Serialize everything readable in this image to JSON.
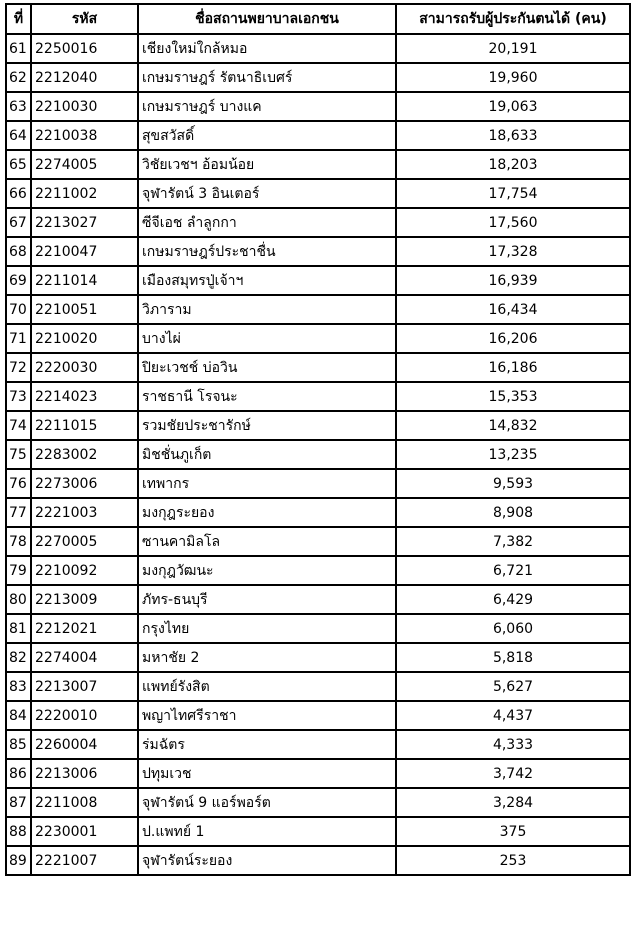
{
  "headers": [
    "ที่",
    "รหัส",
    "ชื่อสถานพยาบาลเอกชน",
    "สามารถรับผู้ประกันตนได้ (คน)"
  ],
  "rows": [
    {
      "no": "61",
      "code": "2250016",
      "name": "เชียงใหม่ใกล้หมอ",
      "capacity": "20,191"
    },
    {
      "no": "62",
      "code": "2212040",
      "name": "เกษมราษฎร์ รัตนาธิเบศร์",
      "capacity": "19,960"
    },
    {
      "no": "63",
      "code": "2210030",
      "name": "เกษมราษฎร์ บางแค",
      "capacity": "19,063"
    },
    {
      "no": "64",
      "code": "2210038",
      "name": "สุขสวัสดิ์",
      "capacity": "18,633"
    },
    {
      "no": "65",
      "code": "2274005",
      "name": "วิชัยเวชฯ อ้อมน้อย",
      "capacity": "18,203"
    },
    {
      "no": "66",
      "code": "2211002",
      "name": "จุฬารัตน์ 3 อินเตอร์",
      "capacity": "17,754"
    },
    {
      "no": "67",
      "code": "2213027",
      "name": "ซีจีเอช ลำลูกกา",
      "capacity": "17,560"
    },
    {
      "no": "68",
      "code": "2210047",
      "name": "เกษมราษฎร์ประชาชื่น",
      "capacity": "17,328"
    },
    {
      "no": "69",
      "code": "2211014",
      "name": "เมืองสมุทรปู่เจ้าฯ",
      "capacity": "16,939"
    },
    {
      "no": "70",
      "code": "2210051",
      "name": "วิภาราม",
      "capacity": "16,434"
    },
    {
      "no": "71",
      "code": "2210020",
      "name": "บางไผ่",
      "capacity": "16,206"
    },
    {
      "no": "72",
      "code": "2220030",
      "name": "ปิยะเวชช์ บ่อวิน",
      "capacity": "16,186"
    },
    {
      "no": "73",
      "code": "2214023",
      "name": "ราชธานี โรจนะ",
      "capacity": "15,353"
    },
    {
      "no": "74",
      "code": "2211015",
      "name": "รวมชัยประชารักษ์",
      "capacity": "14,832"
    },
    {
      "no": "75",
      "code": "2283002",
      "name": "มิชชั่นภูเก็ต",
      "capacity": "13,235"
    },
    {
      "no": "76",
      "code": "2273006",
      "name": "เทพากร",
      "capacity": "9,593"
    },
    {
      "no": "77",
      "code": "2221003",
      "name": "มงกุฎระยอง",
      "capacity": "8,908"
    },
    {
      "no": "78",
      "code": "2270005",
      "name": "ซานคามิลโล",
      "capacity": "7,382"
    },
    {
      "no": "79",
      "code": "2210092",
      "name": "มงกุฎวัฒนะ",
      "capacity": "6,721"
    },
    {
      "no": "80",
      "code": "2213009",
      "name": "ภัทร-ธนบุรี",
      "capacity": "6,429"
    },
    {
      "no": "81",
      "code": "2212021",
      "name": "กรุงไทย",
      "capacity": "6,060"
    },
    {
      "no": "82",
      "code": "2274004",
      "name": "มหาชัย 2",
      "capacity": "5,818"
    },
    {
      "no": "83",
      "code": "2213007",
      "name": "แพทย์รังสิต",
      "capacity": "5,627"
    },
    {
      "no": "84",
      "code": "2220010",
      "name": "พญาไทศรีราชา",
      "capacity": "4,437"
    },
    {
      "no": "85",
      "code": "2260004",
      "name": "ร่มฉัตร",
      "capacity": "4,333"
    },
    {
      "no": "86",
      "code": "2213006",
      "name": "ปทุมเวช",
      "capacity": "3,742"
    },
    {
      "no": "87",
      "code": "2211008",
      "name": "จุฬารัตน์ 9 แอร์พอร์ต",
      "capacity": "3,284"
    },
    {
      "no": "88",
      "code": "2230001",
      "name": "ป.แพทย์ 1",
      "capacity": "375"
    },
    {
      "no": "89",
      "code": "2221007",
      "name": "จุฬารัตน์ระยอง",
      "capacity": "253"
    }
  ]
}
